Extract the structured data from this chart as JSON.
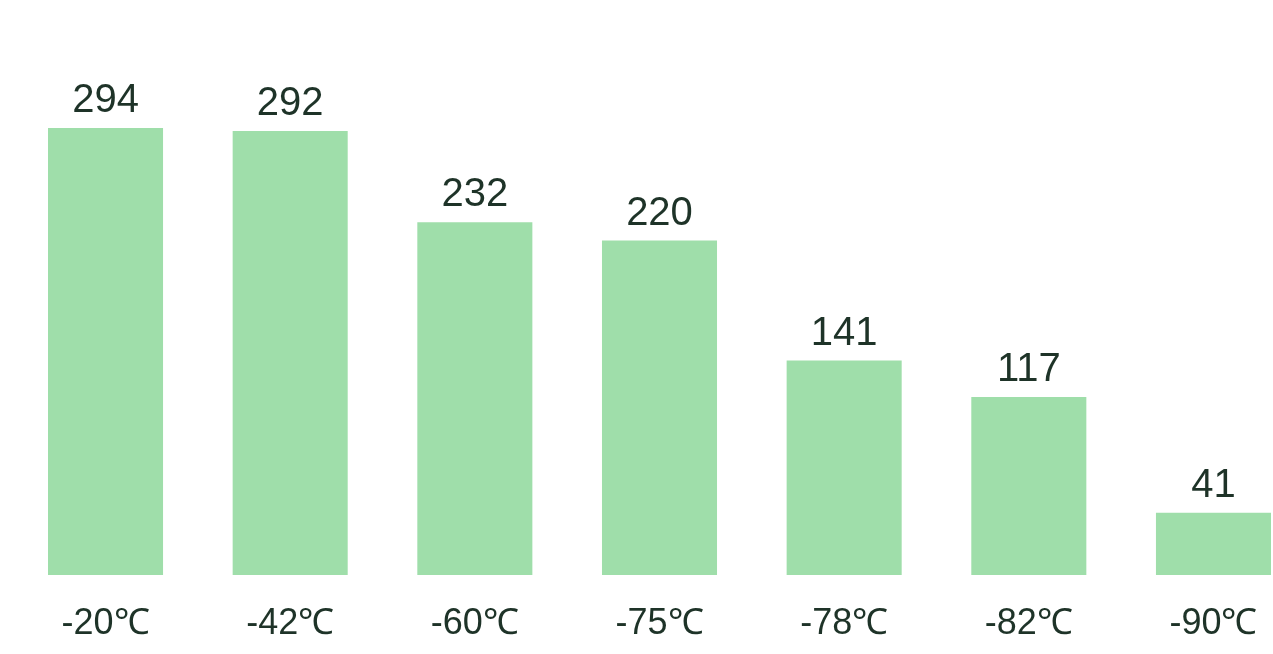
{
  "chart_data": {
    "type": "bar",
    "categories": [
      "-20℃",
      "-42℃",
      "-60℃",
      "-75℃",
      "-78℃",
      "-82℃",
      "-90℃"
    ],
    "values": [
      294,
      292,
      232,
      220,
      141,
      117,
      41
    ],
    "color": "#9fdeaa",
    "data_labels": true,
    "grid": false
  }
}
